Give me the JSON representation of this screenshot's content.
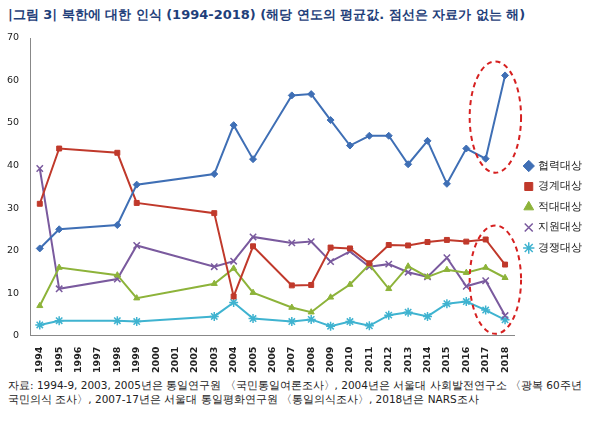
{
  "chart_data": {
    "type": "line",
    "title": "|그림 3| 북한에 대한 인식 (1994-2018) (해당 연도의 평균값. 점선은 자료가 없는 해)",
    "source": "자료: 1994-9, 2003, 2005년은 통일연구원 〈국민통일여론조사〉, 2004년은 서울대 사회발전연구소 〈광복 60주년 국민의식 조사〉, 2007-17년은 서울대 통일평화연구원 〈통일의식조사〉, 2018년은 NARS조사",
    "categories": [
      "1994",
      "1995",
      "1996",
      "1997",
      "1998",
      "1999",
      "2000",
      "2001",
      "2002",
      "2003",
      "2004",
      "2005",
      "2006",
      "2007",
      "2008",
      "2009",
      "2010",
      "2011",
      "2012",
      "2013",
      "2014",
      "2015",
      "2016",
      "2017",
      "2018"
    ],
    "series": [
      {
        "name": "협력대상",
        "color": "#3f6fb5",
        "marker": "diamond",
        "values": [
          20.5,
          25,
          null,
          null,
          26,
          35.5,
          null,
          null,
          null,
          38,
          49.5,
          41.5,
          null,
          56.5,
          56.8,
          50.7,
          44.7,
          47,
          47,
          40.3,
          45.8,
          35.7,
          44,
          41.6,
          61.2
        ]
      },
      {
        "name": "경계대상",
        "color": "#c0392b",
        "marker": "square",
        "values": [
          31,
          44,
          null,
          null,
          43,
          31.2,
          null,
          null,
          null,
          28.8,
          9.2,
          21,
          null,
          11.8,
          11.9,
          20.7,
          20.5,
          17,
          21.3,
          21.2,
          22,
          22.5,
          22.1,
          22.6,
          16.7
        ]
      },
      {
        "name": "적대대상",
        "color": "#8db33a",
        "marker": "triangle",
        "values": [
          7,
          16,
          null,
          null,
          14.2,
          8.8,
          null,
          null,
          null,
          12.2,
          15.8,
          10.1,
          null,
          6.6,
          5.5,
          9,
          12,
          16.7,
          11,
          16.3,
          13.8,
          15.5,
          14.8,
          16,
          13.6
        ]
      },
      {
        "name": "지원대상",
        "color": "#7a5a9e",
        "marker": "x",
        "values": [
          39.3,
          11,
          null,
          null,
          13.3,
          21.2,
          null,
          null,
          null,
          16.2,
          17.5,
          23.2,
          null,
          21.8,
          22.1,
          17.4,
          19.8,
          16.2,
          16.8,
          14.9,
          13.8,
          18.3,
          11.6,
          12.9,
          4.7
        ]
      },
      {
        "name": "경쟁대상",
        "color": "#3fb3d0",
        "marker": "star",
        "values": [
          2.5,
          3.5,
          null,
          null,
          3.5,
          3.3,
          null,
          null,
          null,
          4.5,
          7.8,
          4,
          null,
          3.3,
          3.8,
          2.2,
          3.3,
          2.3,
          4.8,
          5.5,
          4.5,
          7.5,
          8,
          6,
          3.7
        ]
      }
    ],
    "ylim": [
      0,
      70
    ],
    "yticks": [
      0,
      10,
      20,
      30,
      40,
      50,
      60,
      70
    ],
    "grid": false,
    "legend": "right"
  }
}
